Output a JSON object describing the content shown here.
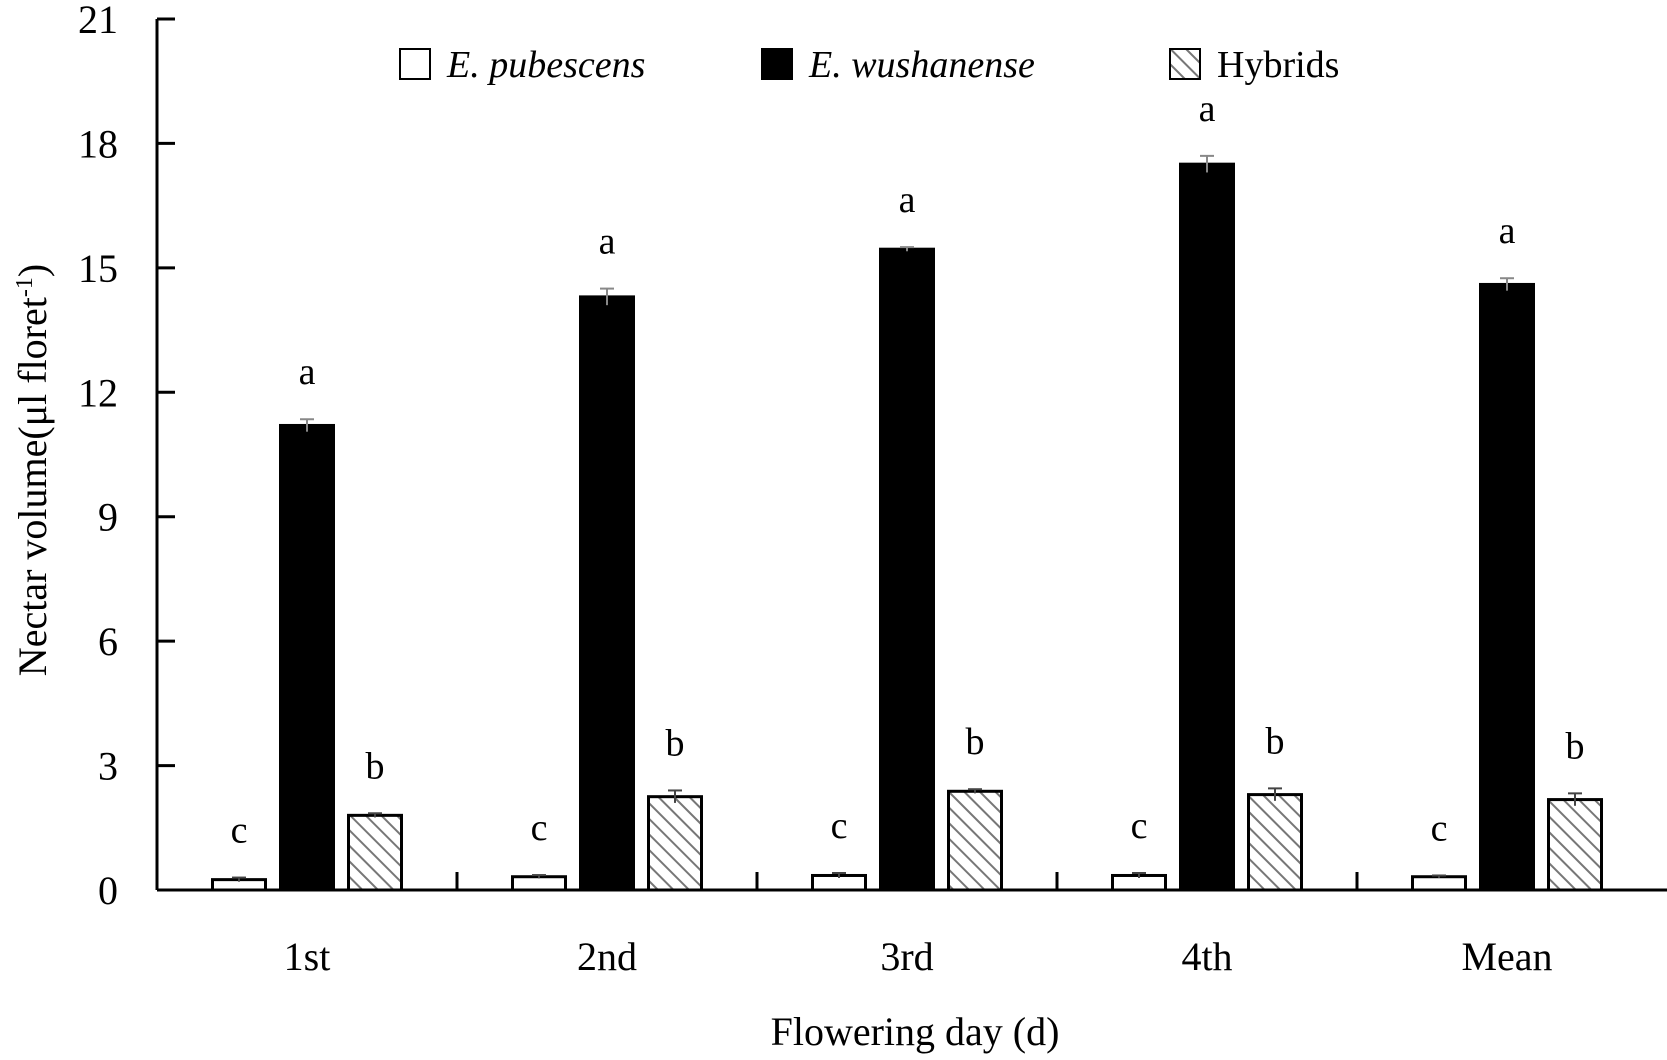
{
  "chart_data": {
    "type": "bar",
    "title": "",
    "xlabel": "Flowering day (d)",
    "ylabel": "Nectar volume(μl floret",
    "ylabel_sup": "-1",
    "ylabel_close": ")",
    "ylim": [
      0,
      21
    ],
    "yticks": [
      "0",
      "3",
      "6",
      "9",
      "12",
      "15",
      "18",
      "21"
    ],
    "categories": [
      "1st",
      "2nd",
      "3rd",
      "4th",
      "Mean"
    ],
    "legend_position": "top",
    "grid": false,
    "series": [
      {
        "name": "E. pubescens",
        "italic": true,
        "fill": "#ffffff",
        "pattern": "none",
        "values": [
          0.25,
          0.32,
          0.35,
          0.35,
          0.32
        ],
        "errors": [
          0.05,
          0.04,
          0.06,
          0.06,
          0.03
        ],
        "letters": [
          "c",
          "c",
          "c",
          "c",
          "c"
        ]
      },
      {
        "name": "E. wushanense",
        "italic": true,
        "fill": "#000000",
        "pattern": "none",
        "values": [
          11.2,
          14.3,
          15.45,
          17.5,
          14.6
        ],
        "errors": [
          0.15,
          0.2,
          0.05,
          0.2,
          0.15
        ],
        "letters": [
          "a",
          "a",
          "a",
          "a",
          "a"
        ]
      },
      {
        "name": "Hybrids",
        "italic": false,
        "fill": "#ffffff",
        "pattern": "diagonal-hatch",
        "values": [
          1.8,
          2.25,
          2.38,
          2.3,
          2.18
        ],
        "errors": [
          0.05,
          0.15,
          0.05,
          0.15,
          0.15
        ],
        "letters": [
          "b",
          "b",
          "b",
          "b",
          "b"
        ]
      }
    ]
  }
}
